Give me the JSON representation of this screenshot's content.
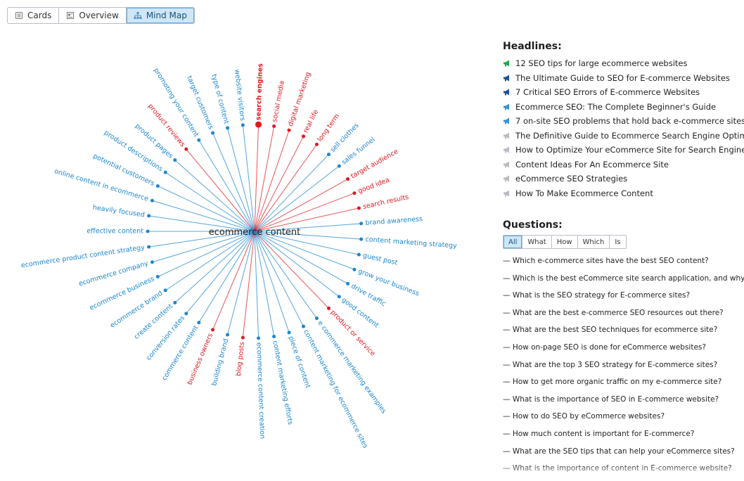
{
  "view_tabs": [
    {
      "label": "Cards",
      "icon": "cards-icon",
      "active": false
    },
    {
      "label": "Overview",
      "icon": "overview-icon",
      "active": false
    },
    {
      "label": "Mind Map",
      "icon": "mindmap-icon",
      "active": true
    }
  ],
  "mindmap": {
    "center": "ecommerce content",
    "colors": {
      "blue": "#1a86d0",
      "red": "#e0181f"
    },
    "nodes": [
      {
        "label": "effective content",
        "color": "blue"
      },
      {
        "label": "heavily focused",
        "color": "blue"
      },
      {
        "label": "online content in ecommerce",
        "color": "blue"
      },
      {
        "label": "potential customers",
        "color": "blue"
      },
      {
        "label": "product descriptions",
        "color": "blue"
      },
      {
        "label": "product pages",
        "color": "blue"
      },
      {
        "label": "product reviews",
        "color": "red"
      },
      {
        "label": "promoting your content",
        "color": "blue"
      },
      {
        "label": "target customers",
        "color": "blue"
      },
      {
        "label": "type of content",
        "color": "blue"
      },
      {
        "label": "website visitors",
        "color": "blue"
      },
      {
        "label": "search engines",
        "color": "red",
        "highlight": true
      },
      {
        "label": "social media",
        "color": "red"
      },
      {
        "label": "digital marketing",
        "color": "red"
      },
      {
        "label": "real life",
        "color": "red"
      },
      {
        "label": "long term",
        "color": "red"
      },
      {
        "label": "sell clothes",
        "color": "blue"
      },
      {
        "label": "sales funnel",
        "color": "blue"
      },
      {
        "label": "target audience",
        "color": "red"
      },
      {
        "label": "good idea",
        "color": "red"
      },
      {
        "label": "search results",
        "color": "red"
      },
      {
        "label": "brand awareness",
        "color": "blue"
      },
      {
        "label": "content marketing strategy",
        "color": "blue"
      },
      {
        "label": "guest post",
        "color": "blue"
      },
      {
        "label": "grow your business",
        "color": "blue"
      },
      {
        "label": "drive traffic",
        "color": "blue"
      },
      {
        "label": "good content",
        "color": "blue"
      },
      {
        "label": "product or service",
        "color": "red"
      },
      {
        "label": "e commerce marketing examples",
        "color": "blue"
      },
      {
        "label": "content marketing for ecommerce sites",
        "color": "blue"
      },
      {
        "label": "piece of content",
        "color": "blue"
      },
      {
        "label": "content marketing efforts",
        "color": "blue"
      },
      {
        "label": "ecommerce content creation",
        "color": "blue"
      },
      {
        "label": "blog posts",
        "color": "red"
      },
      {
        "label": "building brand",
        "color": "blue"
      },
      {
        "label": "business owners",
        "color": "red"
      },
      {
        "label": "commerce content",
        "color": "blue"
      },
      {
        "label": "conversion rates",
        "color": "blue"
      },
      {
        "label": "create content",
        "color": "blue"
      },
      {
        "label": "ecommerce brand",
        "color": "blue"
      },
      {
        "label": "ecommerce business",
        "color": "blue"
      },
      {
        "label": "ecommerce company",
        "color": "blue"
      },
      {
        "label": "ecommerce product content strategy",
        "color": "blue"
      }
    ]
  },
  "headlines": {
    "title": "Headlines:",
    "items": [
      {
        "text": "12 SEO tips for large ecommerce websites",
        "icon": "megaphone-green-icon",
        "color": "#1fa64a"
      },
      {
        "text": "The Ultimate Guide to SEO for E-commerce Websites",
        "icon": "megaphone-navy-icon",
        "color": "#1a4f9c"
      },
      {
        "text": "7 Critical SEO Errors of E-commerce Websites",
        "icon": "megaphone-navy-icon",
        "color": "#1a4f9c"
      },
      {
        "text": "Ecommerce SEO: The Complete Beginner's Guide",
        "icon": "megaphone-blue-icon",
        "color": "#3a8fd8"
      },
      {
        "text": "7 on-site SEO problems that hold back e-commerce sites",
        "icon": "megaphone-blue-icon",
        "color": "#3a8fd8"
      },
      {
        "text": "The Definitive Guide to Ecommerce Search Engine Optimization",
        "icon": "megaphone-gray-icon",
        "color": "#b8bcc2"
      },
      {
        "text": "How to Optimize Your eCommerce Site for Search Engines",
        "icon": "megaphone-gray-icon",
        "color": "#b8bcc2"
      },
      {
        "text": "Content Ideas For An Ecommerce Site",
        "icon": "megaphone-gray-icon",
        "color": "#b8bcc2"
      },
      {
        "text": "eCommerce SEO Strategies",
        "icon": "megaphone-gray-icon",
        "color": "#b8bcc2"
      },
      {
        "text": "How To Make Ecommerce Content",
        "icon": "megaphone-gray-icon",
        "color": "#b8bcc2"
      }
    ]
  },
  "questions": {
    "title": "Questions:",
    "filters": [
      {
        "label": "All",
        "active": true
      },
      {
        "label": "What",
        "active": false
      },
      {
        "label": "How",
        "active": false
      },
      {
        "label": "Which",
        "active": false
      },
      {
        "label": "Is",
        "active": false
      }
    ],
    "items": [
      "— Which e-commerce sites have the best SEO content?",
      "— Which is the best eCommerce site search application, and why?",
      "— What is the SEO strategy for E-commerce sites?",
      "— What are the best e-commerce SEO resources out there?",
      "— What are the best SEO techniques for ecommerce site?",
      "— How on-page SEO is done for eCommerce websites?",
      "— What are the top 3 SEO strategy for E-commerce sites?",
      "— How to get more organic traffic on my e-commerce site?",
      "— What is the importance of SEO in E-commerce website?",
      "— How to do SEO by eCommerce websites?",
      "— How much content is important for E-commerce?",
      "— What are the SEO tips that can help your eCommerce sites?",
      "— What is the importance of content in E-commerce website?"
    ]
  }
}
